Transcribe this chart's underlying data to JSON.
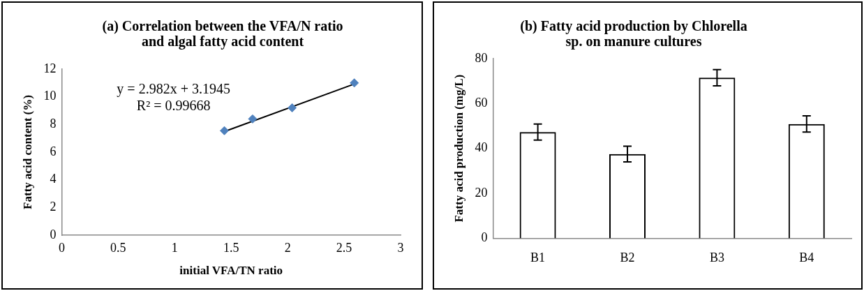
{
  "chart_data": [
    {
      "type": "scatter",
      "title": "(a) Correlation between the VFA/N ratio and algal fatty acid content",
      "xlabel": "initial VFA/TN ratio",
      "ylabel": "Fatty acid content (%)",
      "marker": "diamond",
      "grid": false,
      "legend": false,
      "series": [
        {
          "type": "scatter",
          "color": "#4f81bd",
          "x": [
            1.44,
            1.69,
            2.04,
            2.59
          ],
          "values": [
            7.55,
            8.4,
            9.2,
            11.0
          ]
        },
        {
          "type": "line",
          "color": "#000000",
          "marker": "none",
          "x": [
            1.44,
            2.59
          ],
          "values": [
            7.49,
            10.92
          ]
        }
      ],
      "xlim": [
        0,
        3
      ],
      "xticks": [
        0,
        0.5,
        1,
        1.5,
        2,
        2.5,
        3
      ],
      "ylim": [
        0,
        12
      ],
      "yticks": [
        0,
        2,
        4,
        6,
        8,
        10,
        12
      ],
      "annotations": [
        "y = 2.982x + 3.1945",
        "R² = 0.99668"
      ]
    },
    {
      "type": "bar",
      "title": "(b) Fatty acid production by Chlorella sp. on manure cultures",
      "ylabel": "Fatty acid production (mg/L)",
      "categories": [
        "B1",
        "B2",
        "B3",
        "B4"
      ],
      "values": [
        47.3,
        37.5,
        71.5,
        50.9
      ],
      "errors": [
        3.6,
        3.5,
        3.6,
        3.6
      ],
      "color": "#000000",
      "grid": false,
      "legend": false,
      "ylim": [
        0,
        80
      ],
      "yticks": [
        0,
        20,
        40,
        60,
        80
      ]
    }
  ]
}
